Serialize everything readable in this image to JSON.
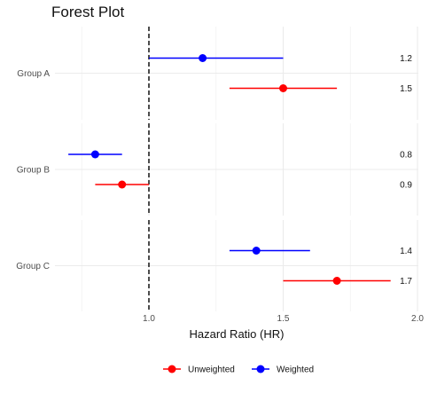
{
  "chart_data": {
    "type": "forest",
    "title": "Forest Plot",
    "xlabel": "Hazard Ratio (HR)",
    "xlim": [
      0.65,
      2.0
    ],
    "xticks": [
      "1.0",
      "1.5",
      "2.0"
    ],
    "xtick_values": [
      1.0,
      1.5,
      2.0
    ],
    "reference_line": 1.0,
    "groups": [
      "Group A",
      "Group B",
      "Group C"
    ],
    "series": [
      {
        "name": "Weighted",
        "color": "#0000ff",
        "estimates": [
          1.2,
          0.8,
          1.4
        ],
        "lower": [
          1.0,
          0.7,
          1.3
        ],
        "upper": [
          1.5,
          0.9,
          1.6
        ],
        "labels": [
          "1.2",
          "0.8",
          "1.4"
        ]
      },
      {
        "name": "Unweighted",
        "color": "#ff0000",
        "estimates": [
          1.5,
          0.9,
          1.7
        ],
        "lower": [
          1.3,
          0.8,
          1.5
        ],
        "upper": [
          1.7,
          1.0,
          1.9
        ],
        "labels": [
          "1.5",
          "0.9",
          "1.7"
        ]
      }
    ],
    "legend": {
      "position": "bottom",
      "items": [
        {
          "label": "Unweighted",
          "color": "#ff0000"
        },
        {
          "label": "Weighted",
          "color": "#0000ff"
        }
      ]
    },
    "grid": true
  }
}
